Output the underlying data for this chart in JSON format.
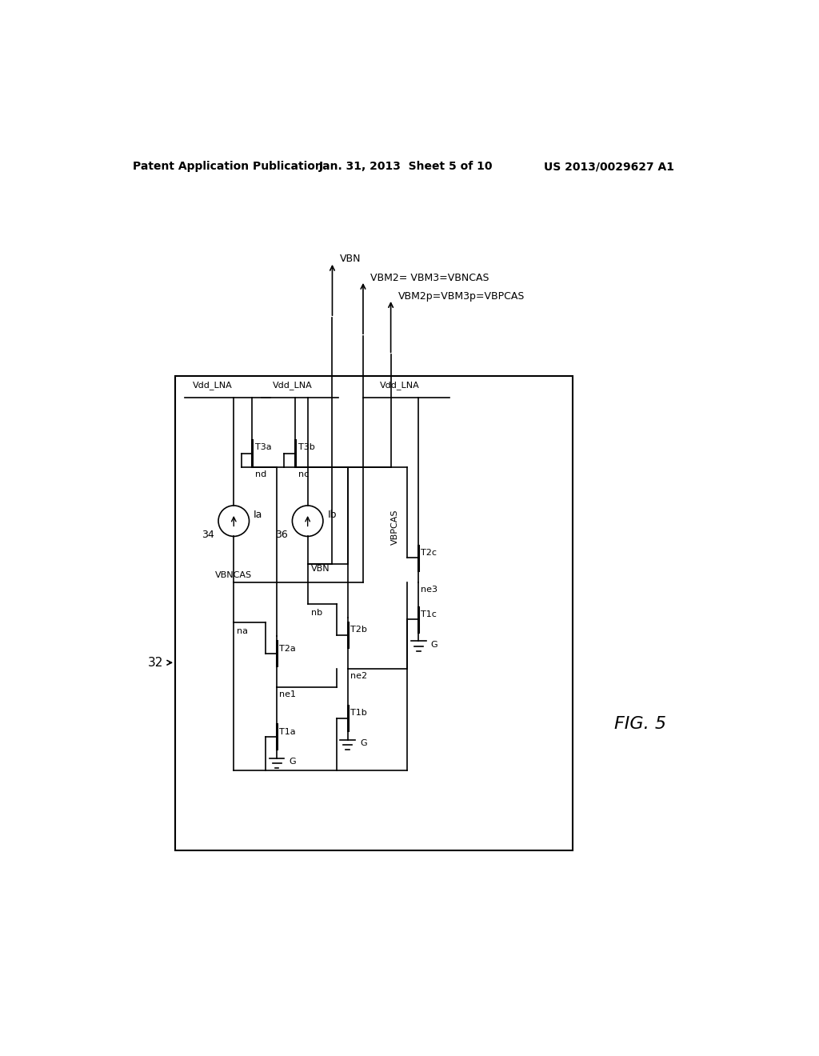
{
  "title_left": "Patent Application Publication",
  "title_mid": "Jan. 31, 2013  Sheet 5 of 10",
  "title_right": "US 2013/0029627 A1",
  "fig_label": "FIG. 5",
  "background": "#ffffff",
  "line_color": "#000000",
  "box_label": "32"
}
